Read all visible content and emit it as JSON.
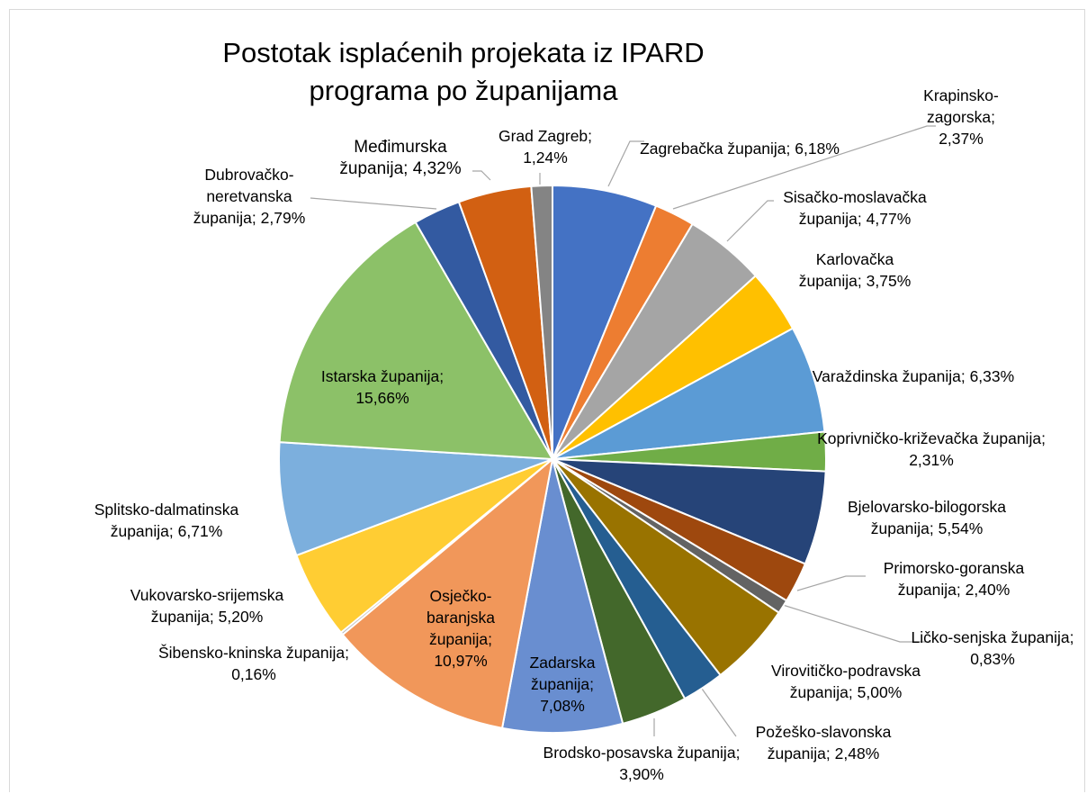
{
  "chart_data": {
    "type": "pie",
    "title": "Postotak isplaćenih projekata iz IPARD programa po županijama",
    "label_separator": "; ",
    "categories": [
      "Zagrebačka županija",
      "Krapinsko-zagorska",
      "Sisačko-moslavačka županija",
      "Karlovačka županija",
      "Varaždinska županija",
      "Koprivničko-križevačka županija",
      "Bjelovarsko-bilogorska županija",
      "Primorsko-goranska županija",
      "Ličko-senjska županija",
      "Virovitičko-podravska županija",
      "Požeško-slavonska županija",
      "Brodsko-posavska županija",
      "Zadarska županija",
      "Osječko-baranjska županija",
      "Šibensko-kninska županija",
      "Vukovarsko-srijemska županija",
      "Splitsko-dalmatinska županija",
      "Istarska županija",
      "Dubrovačko-neretvanska županija",
      "Međimurska županija",
      "Grad Zagreb"
    ],
    "values": [
      6.18,
      2.37,
      4.77,
      3.75,
      6.33,
      2.31,
      5.54,
      2.4,
      0.83,
      5.0,
      2.48,
      3.9,
      7.08,
      10.97,
      0.16,
      5.2,
      6.71,
      15.66,
      2.79,
      4.32,
      1.24
    ],
    "value_labels": [
      "6,18%",
      "2,37%",
      "4,77%",
      "3,75%",
      "6,33%",
      "2,31%",
      "5,54%",
      "2,40%",
      "0,83%",
      "5,00%",
      "2,48%",
      "3,90%",
      "7,08%",
      "10,97%",
      "0,16%",
      "5,20%",
      "6,71%",
      "15,66%",
      "2,79%",
      "4,32%",
      "1,24%"
    ],
    "colors": [
      "#4472c4",
      "#ed7d31",
      "#a5a5a5",
      "#ffc000",
      "#5b9bd5",
      "#70ad47",
      "#264478",
      "#9e480e",
      "#636363",
      "#997300",
      "#255e91",
      "#43682b",
      "#698ed0",
      "#f1975a",
      "#b7b7b7",
      "#ffcd33",
      "#7cafdd",
      "#8cc168",
      "#335aa1",
      "#d26012",
      "#848484"
    ]
  }
}
